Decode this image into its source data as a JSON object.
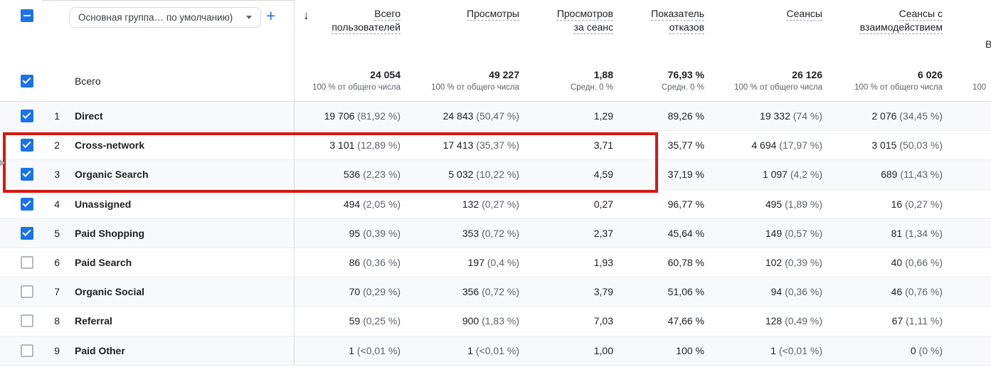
{
  "colors": {
    "accent_blue": "#1a73e8",
    "text_primary": "#202124",
    "text_secondary": "#5f6368",
    "row_alt_background": "#f8f9fa",
    "annotation_red": "#d31a12"
  },
  "icons": {
    "sort_desc": "↓",
    "add": "+"
  },
  "toolbar": {
    "group_selector_value": "Основная группа… по умолчанию)"
  },
  "columns": [
    {
      "label": "Всего пользователей"
    },
    {
      "label": "Просмотры"
    },
    {
      "label": "Просмотров за сеанс"
    },
    {
      "label": "Показатель отказов"
    },
    {
      "label": "Сеансы"
    },
    {
      "label": "Сеансы с взаимодействием"
    }
  ],
  "next_column": {
    "header_partial": "В",
    "total_partial": "100"
  },
  "totals": {
    "label": "Всего",
    "checked": true,
    "metrics": [
      {
        "value": "24 054",
        "sub": "100 % от общего числа"
      },
      {
        "value": "49 227",
        "sub": "100 % от общего числа"
      },
      {
        "value": "1,88",
        "sub": "Средн. 0 %"
      },
      {
        "value": "76,93 %",
        "sub": "Средн. 0 %"
      },
      {
        "value": "26 126",
        "sub": "100 % от общего числа"
      },
      {
        "value": "6 026",
        "sub": "100 % от общего числа"
      }
    ]
  },
  "rows": [
    {
      "num": "1",
      "channel": "Direct",
      "checked": true,
      "metrics": [
        [
          "19 706",
          "(81,92 %)"
        ],
        [
          "24 843",
          "(50,47 %)"
        ],
        [
          "1,29",
          ""
        ],
        [
          "89,26 %",
          ""
        ],
        [
          "19 332",
          "(74 %)"
        ],
        [
          "2 076",
          "(34,45 %)"
        ]
      ]
    },
    {
      "num": "2",
      "channel": "Cross-network",
      "checked": true,
      "metrics": [
        [
          "3 101",
          "(12,89 %)"
        ],
        [
          "17 413",
          "(35,37 %)"
        ],
        [
          "3,71",
          ""
        ],
        [
          "35,77 %",
          ""
        ],
        [
          "4 694",
          "(17,97 %)"
        ],
        [
          "3 015",
          "(50,03 %)"
        ]
      ]
    },
    {
      "num": "3",
      "channel": "Organic Search",
      "checked": true,
      "metrics": [
        [
          "536",
          "(2,23 %)"
        ],
        [
          "5 032",
          "(10,22 %)"
        ],
        [
          "4,59",
          ""
        ],
        [
          "37,19 %",
          ""
        ],
        [
          "1 097",
          "(4,2 %)"
        ],
        [
          "689",
          "(11,43 %)"
        ]
      ]
    },
    {
      "num": "4",
      "channel": "Unassigned",
      "checked": true,
      "metrics": [
        [
          "494",
          "(2,05 %)"
        ],
        [
          "132",
          "(0,27 %)"
        ],
        [
          "0,27",
          ""
        ],
        [
          "96,77 %",
          ""
        ],
        [
          "495",
          "(1,89 %)"
        ],
        [
          "16",
          "(0,27 %)"
        ]
      ]
    },
    {
      "num": "5",
      "channel": "Paid Shopping",
      "checked": true,
      "metrics": [
        [
          "95",
          "(0,39 %)"
        ],
        [
          "353",
          "(0,72 %)"
        ],
        [
          "2,37",
          ""
        ],
        [
          "45,64 %",
          ""
        ],
        [
          "149",
          "(0,57 %)"
        ],
        [
          "81",
          "(1,34 %)"
        ]
      ]
    },
    {
      "num": "6",
      "channel": "Paid Search",
      "checked": false,
      "metrics": [
        [
          "86",
          "(0,36 %)"
        ],
        [
          "197",
          "(0,4 %)"
        ],
        [
          "1,93",
          ""
        ],
        [
          "60,78 %",
          ""
        ],
        [
          "102",
          "(0,39 %)"
        ],
        [
          "40",
          "(0,66 %)"
        ]
      ]
    },
    {
      "num": "7",
      "channel": "Organic Social",
      "checked": false,
      "metrics": [
        [
          "70",
          "(0,29 %)"
        ],
        [
          "356",
          "(0,72 %)"
        ],
        [
          "3,79",
          ""
        ],
        [
          "51,06 %",
          ""
        ],
        [
          "94",
          "(0,36 %)"
        ],
        [
          "46",
          "(0,76 %)"
        ]
      ]
    },
    {
      "num": "8",
      "channel": "Referral",
      "checked": false,
      "metrics": [
        [
          "59",
          "(0,25 %)"
        ],
        [
          "900",
          "(1,83 %)"
        ],
        [
          "7,03",
          ""
        ],
        [
          "47,66 %",
          ""
        ],
        [
          "128",
          "(0,49 %)"
        ],
        [
          "67",
          "(1,11 %)"
        ]
      ]
    },
    {
      "num": "9",
      "channel": "Paid Other",
      "checked": false,
      "metrics": [
        [
          "1",
          "(<0,01 %)"
        ],
        [
          "1",
          "(<0,01 %)"
        ],
        [
          "1,00",
          ""
        ],
        [
          "100 %",
          ""
        ],
        [
          "1",
          "(<0,01 %)"
        ],
        [
          "0",
          "(0 %)"
        ]
      ]
    }
  ]
}
